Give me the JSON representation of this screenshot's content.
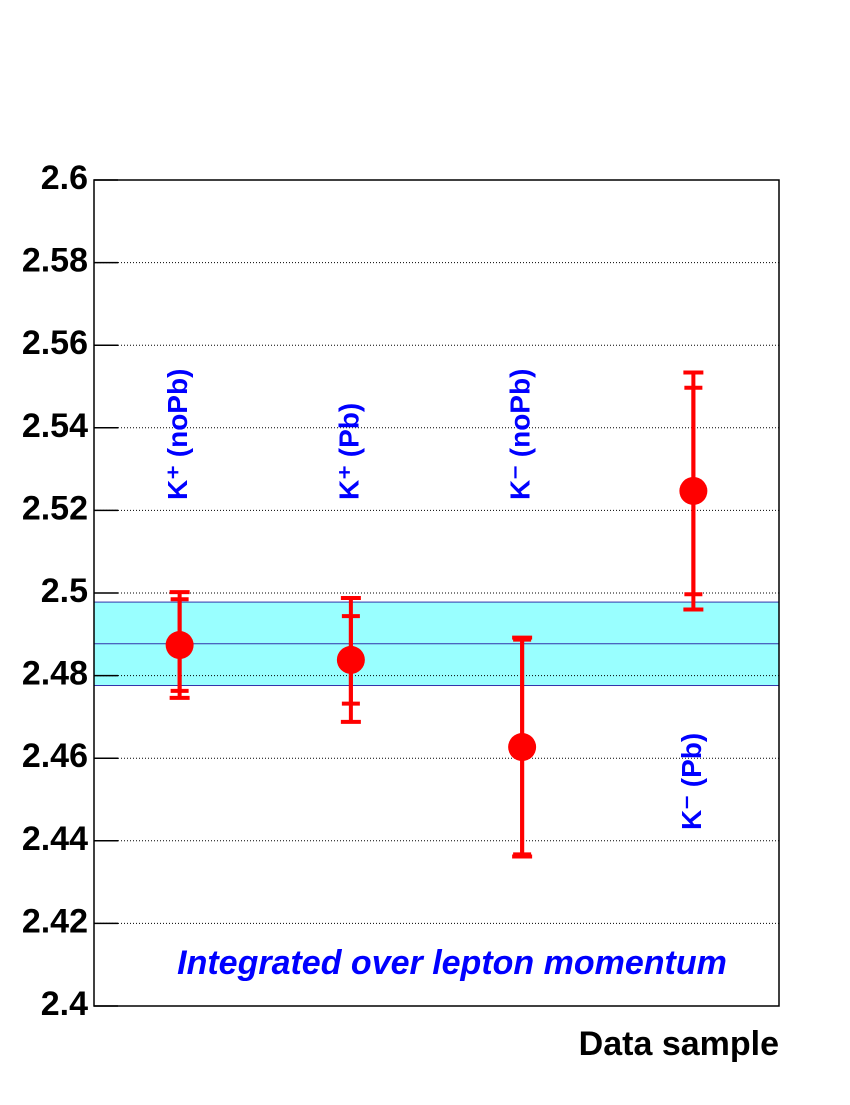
{
  "chart_data": {
    "type": "errorbar",
    "xlabel": "Data sample",
    "annotation": "Integrated over lepton momentum",
    "categories": [
      "K⁺ (noPb)",
      "K⁺ (Pb)",
      "K⁻ (noPb)",
      "K⁻ (Pb)"
    ],
    "category_color": "#0000ff",
    "series": [
      {
        "color": "#ff0000",
        "values": [
          2.4874,
          2.4838,
          2.4627,
          2.5247
        ],
        "stat_errors": [
          0.0111,
          0.0106,
          0.026,
          0.025
        ],
        "total_errors": [
          0.0128,
          0.015,
          0.0265,
          0.0287
        ]
      }
    ],
    "band": {
      "value": 2.4877,
      "error": 0.0101,
      "color": "#99ffff",
      "line_color": "#3333aa"
    },
    "ylim": [
      2.4,
      2.6
    ],
    "yticks": [
      2.4,
      2.42,
      2.44,
      2.46,
      2.48,
      2.5,
      2.52,
      2.54,
      2.56,
      2.58,
      2.6
    ],
    "grid": true
  }
}
